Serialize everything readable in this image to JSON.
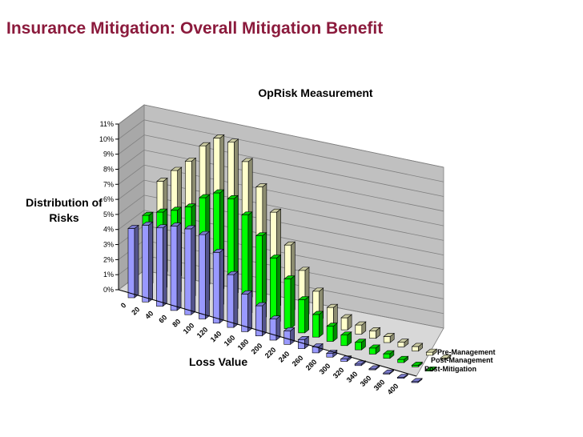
{
  "slide": {
    "title": "Insurance Mitigation: Overall Mitigation Benefit"
  },
  "chart_data": {
    "type": "bar",
    "title": "OpRisk Measurement",
    "xlabel": "Loss Value",
    "ylabel": "Distribution of Risks",
    "ylim": [
      0,
      11
    ],
    "ytick_labels": [
      "0%",
      "1%",
      "2%",
      "3%",
      "4%",
      "5%",
      "6%",
      "7%",
      "8%",
      "9%",
      "10%",
      "11%"
    ],
    "categories": [
      "0",
      "20",
      "40",
      "60",
      "80",
      "100",
      "120",
      "140",
      "160",
      "180",
      "200",
      "220",
      "240",
      "260",
      "280",
      "300",
      "320",
      "340",
      "360",
      "380",
      "400"
    ],
    "grid": true,
    "view": "3d-depth",
    "legend": "bottom-right",
    "series": [
      {
        "name": "Post-Mitigation",
        "color": "#9999ff",
        "values": [
          4.6,
          5.1,
          5.2,
          5.6,
          5.7,
          5.6,
          4.7,
          3.5,
          2.5,
          2.0,
          1.4,
          0.9,
          0.6,
          0.4,
          0.25,
          0.15,
          0.1,
          0.05,
          0.05,
          0.02,
          0.01
        ]
      },
      {
        "name": "Post-Management",
        "color": "#00ff00",
        "values": [
          4.7,
          5.2,
          5.6,
          6.1,
          7.0,
          7.6,
          7.5,
          6.7,
          5.6,
          4.4,
          3.3,
          2.2,
          1.5,
          1.0,
          0.7,
          0.5,
          0.4,
          0.3,
          0.2,
          0.1,
          0.05
        ]
      },
      {
        "name": "Pre-Management",
        "color": "#ffffcc",
        "values": [
          6.2,
          7.2,
          8.1,
          9.4,
          10.2,
          10.2,
          9.2,
          7.8,
          6.4,
          4.5,
          3.1,
          2.0,
          1.2,
          0.8,
          0.6,
          0.5,
          0.4,
          0.3,
          0.3,
          0.2,
          0.1
        ]
      }
    ]
  }
}
